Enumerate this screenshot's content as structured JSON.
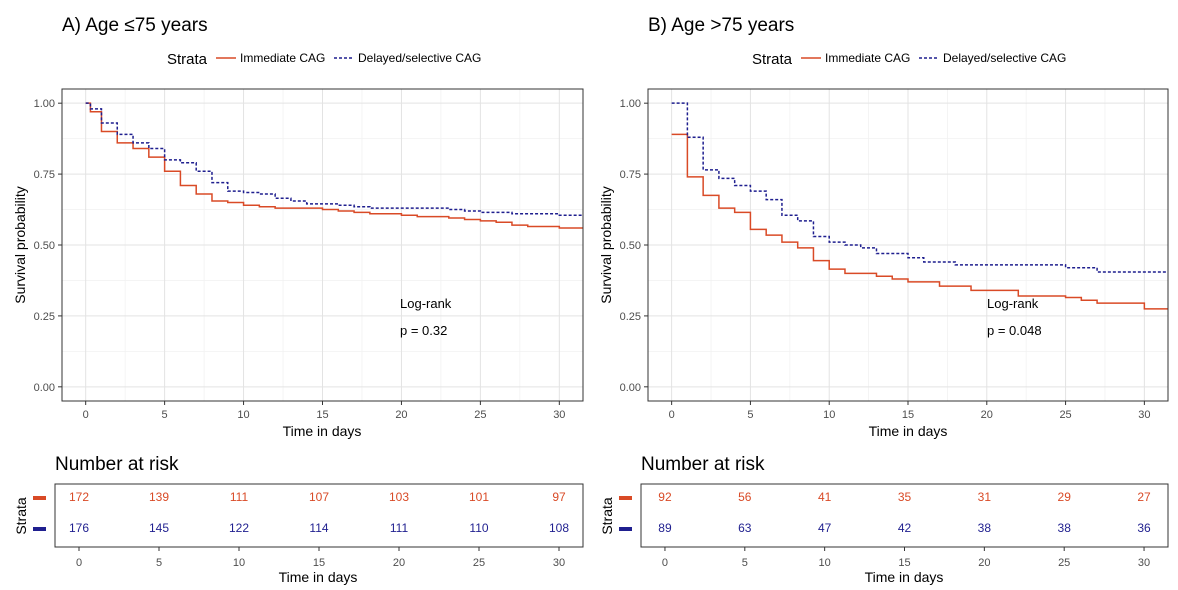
{
  "chart_data": [
    {
      "type": "line",
      "step": true,
      "title": "A) Age ≤75 years",
      "legend": {
        "title": "Strata",
        "position": "top",
        "labels": [
          "Immediate CAG",
          "Delayed/selective CAG"
        ]
      },
      "xlabel": "Time in days",
      "ylabel": "Survival probability",
      "xlim": [
        -1.5,
        31.5
      ],
      "ylim": [
        -0.05,
        1.05
      ],
      "xticks": [
        "0",
        "5",
        "10",
        "15",
        "20",
        "25",
        "30"
      ],
      "yticks": [
        "0.00",
        "0.25",
        "0.50",
        "0.75",
        "1.00"
      ],
      "grid": true,
      "annotations": [
        "Log-rank",
        "p = 0.32"
      ],
      "series": [
        {
          "name": "Immediate CAG",
          "color": "#d94a26",
          "dash": "solid",
          "x": [
            0,
            0.3,
            1,
            2,
            3,
            4,
            5,
            6,
            7,
            8,
            9,
            10,
            11,
            12,
            15,
            16,
            17,
            18,
            20,
            21,
            22,
            23,
            24,
            25,
            26,
            27,
            28,
            30,
            31.5
          ],
          "y": [
            1.0,
            0.97,
            0.9,
            0.86,
            0.84,
            0.81,
            0.76,
            0.71,
            0.68,
            0.655,
            0.65,
            0.64,
            0.635,
            0.63,
            0.625,
            0.62,
            0.615,
            0.61,
            0.605,
            0.6,
            0.6,
            0.595,
            0.59,
            0.585,
            0.58,
            0.57,
            0.565,
            0.56,
            0.56
          ]
        },
        {
          "name": "Delayed/selective CAG",
          "color": "#1f1f8f",
          "dash": "dashed",
          "x": [
            0,
            0.3,
            1,
            2,
            3,
            4,
            5,
            6,
            7,
            8,
            9,
            10,
            11,
            12,
            13,
            14,
            16,
            17,
            18,
            20,
            23,
            24,
            25,
            27,
            28,
            29,
            30,
            31.5
          ],
          "y": [
            1.0,
            0.98,
            0.93,
            0.89,
            0.86,
            0.84,
            0.8,
            0.79,
            0.76,
            0.72,
            0.69,
            0.685,
            0.68,
            0.665,
            0.655,
            0.645,
            0.64,
            0.635,
            0.63,
            0.63,
            0.625,
            0.62,
            0.615,
            0.61,
            0.61,
            0.61,
            0.605,
            0.605
          ]
        }
      ],
      "risk_table": {
        "title": "Number at risk",
        "strata_label": "Strata",
        "xlabel": "Time in days",
        "xticks": [
          "0",
          "5",
          "10",
          "15",
          "20",
          "25",
          "30"
        ],
        "times": [
          0,
          5,
          10,
          15,
          20,
          25,
          30
        ],
        "rows": [
          {
            "color": "#d94a26",
            "values": [
              "172",
              "139",
              "111",
              "107",
              "103",
              "101",
              "97"
            ]
          },
          {
            "color": "#1f1f8f",
            "values": [
              "176",
              "145",
              "122",
              "114",
              "111",
              "110",
              "108"
            ]
          }
        ]
      }
    },
    {
      "type": "line",
      "step": true,
      "title": "B) Age >75 years",
      "legend": {
        "title": "Strata",
        "position": "top",
        "labels": [
          "Immediate CAG",
          "Delayed/selective CAG"
        ]
      },
      "xlabel": "Time in days",
      "ylabel": "Survival probability",
      "xlim": [
        -1.5,
        31.5
      ],
      "ylim": [
        -0.05,
        1.05
      ],
      "xticks": [
        "0",
        "5",
        "10",
        "15",
        "20",
        "25",
        "30"
      ],
      "yticks": [
        "0.00",
        "0.25",
        "0.50",
        "0.75",
        "1.00"
      ],
      "grid": true,
      "annotations": [
        "Log-rank",
        "p = 0.048"
      ],
      "series": [
        {
          "name": "Immediate CAG",
          "color": "#d94a26",
          "dash": "solid",
          "x": [
            0,
            1,
            2,
            3,
            4,
            5,
            6,
            7,
            8,
            9,
            10,
            11,
            13,
            14,
            15,
            17,
            19,
            22,
            25,
            26,
            27,
            29,
            30,
            31.5
          ],
          "y": [
            0.89,
            0.74,
            0.675,
            0.63,
            0.615,
            0.555,
            0.535,
            0.51,
            0.49,
            0.445,
            0.415,
            0.4,
            0.39,
            0.38,
            0.37,
            0.355,
            0.34,
            0.32,
            0.315,
            0.305,
            0.295,
            0.295,
            0.275,
            0.275
          ]
        },
        {
          "name": "Delayed/selective CAG",
          "color": "#1f1f8f",
          "dash": "dashed",
          "x": [
            0,
            1,
            2,
            3,
            4,
            5,
            6,
            7,
            8,
            9,
            10,
            11,
            12,
            13,
            15,
            16,
            18,
            25,
            27,
            31.5
          ],
          "y": [
            1.0,
            0.88,
            0.765,
            0.735,
            0.71,
            0.69,
            0.66,
            0.605,
            0.585,
            0.53,
            0.51,
            0.5,
            0.49,
            0.47,
            0.455,
            0.44,
            0.43,
            0.42,
            0.405,
            0.405
          ]
        }
      ],
      "risk_table": {
        "title": "Number at risk",
        "strata_label": "Strata",
        "xlabel": "Time in days",
        "xticks": [
          "0",
          "5",
          "10",
          "15",
          "20",
          "25",
          "30"
        ],
        "times": [
          0,
          5,
          10,
          15,
          20,
          25,
          30
        ],
        "rows": [
          {
            "color": "#d94a26",
            "values": [
              "92",
              "56",
              "41",
              "35",
              "31",
              "29",
              "27"
            ]
          },
          {
            "color": "#1f1f8f",
            "values": [
              "89",
              "63",
              "47",
              "42",
              "38",
              "38",
              "36"
            ]
          }
        ]
      }
    }
  ]
}
